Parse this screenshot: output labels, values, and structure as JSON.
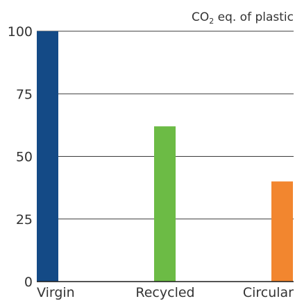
{
  "chart_data": {
    "type": "bar",
    "title": "CO₂ eq. of plastic",
    "title_parts": {
      "prefix": "CO",
      "subscript": "2",
      "suffix": " eq. of plastic"
    },
    "categories": [
      "Virgin",
      "Recycled",
      "Circular"
    ],
    "values": [
      100,
      62,
      40
    ],
    "colors": [
      "#144a86",
      "#6cbb45",
      "#f2862f"
    ],
    "ylim": [
      0,
      100
    ],
    "yticks": [
      0,
      25,
      50,
      75,
      100
    ],
    "grid": true,
    "xlabel": "",
    "ylabel": "",
    "legend": "none"
  }
}
